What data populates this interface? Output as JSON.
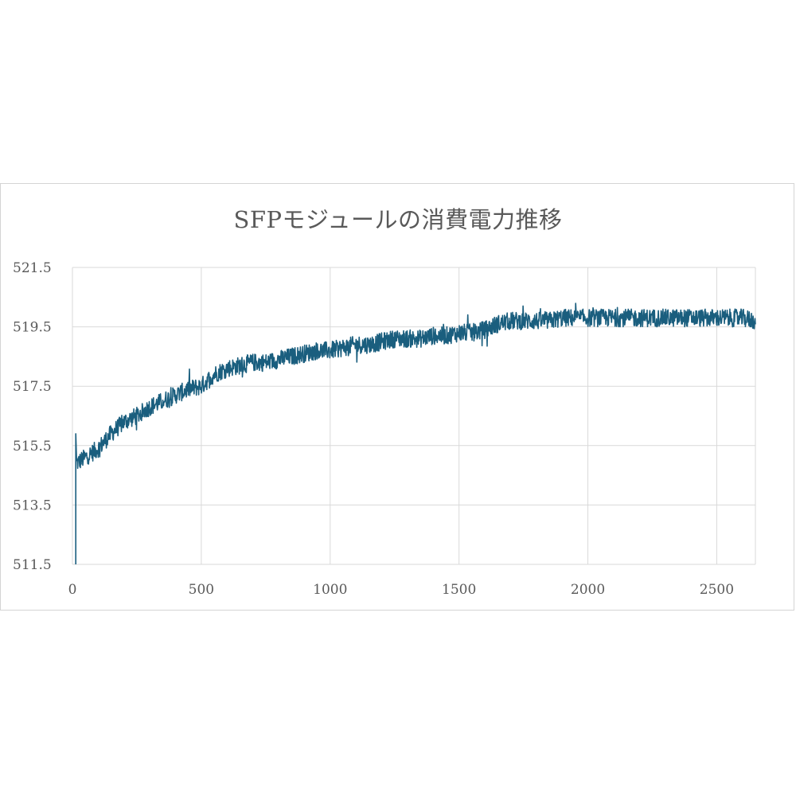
{
  "chart_data": {
    "type": "line",
    "title": "SFPモジュールの消費電力推移",
    "xlabel": "",
    "ylabel": "",
    "xlim": [
      0,
      2650
    ],
    "ylim": [
      511.5,
      521.5
    ],
    "x_ticks": [
      0,
      500,
      1000,
      1500,
      2000,
      2500
    ],
    "y_ticks": [
      511.5,
      513.5,
      515.5,
      517.5,
      519.5,
      521.5
    ],
    "x_tick_labels": [
      "0",
      "500",
      "1000",
      "1500",
      "2000",
      "2500"
    ],
    "y_tick_labels": [
      "511.5",
      "513.5",
      "515.5",
      "517.5",
      "519.5",
      "521.5"
    ],
    "grid": true,
    "legend": "none",
    "color": "#1a5e7e",
    "series": [
      {
        "x": [
          0,
          10,
          15,
          50,
          100,
          150,
          200,
          250,
          300,
          350,
          400,
          450,
          500,
          550,
          600,
          650,
          700,
          750,
          800,
          850,
          900,
          950,
          1000,
          1050,
          1100,
          1150,
          1200,
          1250,
          1300,
          1350,
          1400,
          1450,
          1500,
          1550,
          1600,
          1650,
          1700,
          1750,
          1800,
          1850,
          1900,
          1950,
          2000,
          2050,
          2100,
          2150,
          2200,
          2250,
          2300,
          2350,
          2400,
          2450,
          2500,
          2550,
          2600,
          2650
        ],
        "y": [
          511.5,
          515.9,
          514.9,
          515.1,
          515.4,
          515.9,
          516.3,
          516.5,
          516.8,
          517.0,
          517.2,
          517.4,
          517.5,
          517.9,
          518.1,
          518.2,
          518.3,
          518.3,
          518.4,
          518.5,
          518.6,
          518.7,
          518.7,
          518.8,
          518.9,
          518.9,
          519.0,
          519.1,
          519.1,
          519.1,
          519.2,
          519.2,
          519.3,
          519.3,
          519.4,
          519.6,
          519.7,
          519.7,
          519.7,
          519.7,
          519.8,
          519.8,
          519.8,
          519.8,
          519.8,
          519.8,
          519.8,
          519.8,
          519.8,
          519.8,
          519.8,
          519.8,
          519.8,
          519.8,
          519.8,
          519.7
        ],
        "noise_band": 0.3
      }
    ]
  }
}
